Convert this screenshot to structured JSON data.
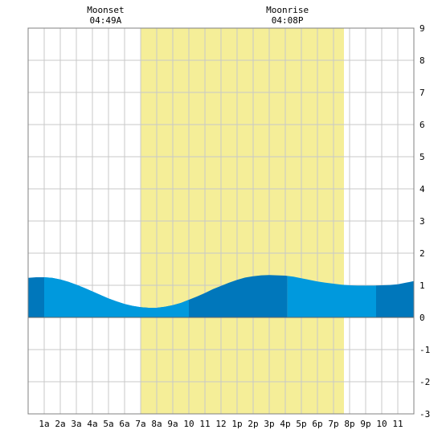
{
  "colors": {
    "daylight": "#f5ee98",
    "water_day": "#0099dd",
    "water_night": "#0077bb",
    "grid": "#c8c8c8",
    "frame": "#808080"
  },
  "moon": {
    "moonset_label": "Moonset",
    "moonset_time": "04:49A",
    "moonrise_label": "Moonrise",
    "moonrise_time": "04:08P"
  },
  "chart_data": {
    "type": "area",
    "title": "",
    "xlabel": "",
    "ylabel": "",
    "x_unit": "hour of day",
    "xlim": [
      0,
      24
    ],
    "ylim": [
      -3,
      9
    ],
    "grid": true,
    "x_tick_labels": [
      "1a",
      "2a",
      "3a",
      "4a",
      "5a",
      "6a",
      "7a",
      "8a",
      "9a",
      "10",
      "11",
      "12",
      "1p",
      "2p",
      "3p",
      "4p",
      "5p",
      "6p",
      "7p",
      "8p",
      "9p",
      "10",
      "11"
    ],
    "y_tick_labels": [
      "-3",
      "-2",
      "-1",
      "0",
      "1",
      "2",
      "3",
      "4",
      "5",
      "6",
      "7",
      "8",
      "9"
    ],
    "daylight_hours": [
      7.0,
      19.65
    ],
    "moonset_hour": 4.82,
    "moonrise_hour": 16.13,
    "series": [
      {
        "x": [
          0,
          0.5,
          1,
          1.5,
          2,
          2.5,
          3,
          3.5,
          4,
          4.5,
          5,
          5.5,
          6,
          6.5,
          7,
          7.5,
          8,
          8.5,
          9,
          9.5,
          10,
          10.5,
          11,
          11.5,
          12,
          12.5,
          13,
          13.5,
          14,
          14.5,
          15,
          15.5,
          16,
          16.5,
          17,
          17.5,
          18,
          18.5,
          19,
          19.5,
          20,
          20.5,
          21,
          21.5,
          22,
          22.5,
          23,
          23.5,
          24
        ],
        "values": [
          1.23,
          1.25,
          1.25,
          1.23,
          1.18,
          1.11,
          1.02,
          0.92,
          0.81,
          0.7,
          0.59,
          0.5,
          0.42,
          0.36,
          0.32,
          0.3,
          0.3,
          0.33,
          0.38,
          0.45,
          0.55,
          0.65,
          0.76,
          0.88,
          0.98,
          1.08,
          1.17,
          1.24,
          1.28,
          1.31,
          1.32,
          1.31,
          1.3,
          1.27,
          1.22,
          1.17,
          1.12,
          1.08,
          1.05,
          1.02,
          1.0,
          0.99,
          0.99,
          0.99,
          1.0,
          1.01,
          1.03,
          1.08,
          1.13
        ]
      }
    ]
  }
}
